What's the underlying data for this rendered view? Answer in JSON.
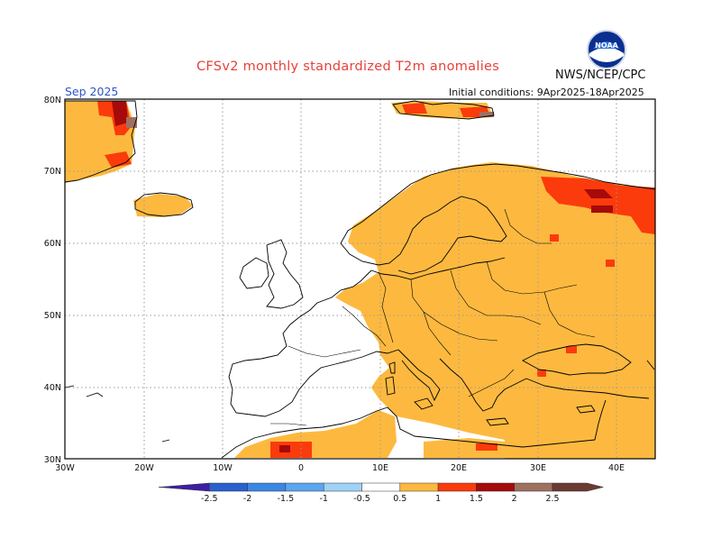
{
  "header": {
    "title": "CFSv2 monthly standardized T2m anomalies",
    "agency": "NWS/NCEP/CPC",
    "valid_month": "Sep 2025",
    "initial_conditions": "Initial conditions: 9Apr2025-18Apr2025",
    "logo_text": "NOAA"
  },
  "axes": {
    "lat_labels": [
      "80N",
      "70N",
      "60N",
      "50N",
      "40N",
      "30N"
    ],
    "lon_labels": [
      "30W",
      "20W",
      "10W",
      "0",
      "10E",
      "20E",
      "30E",
      "40E"
    ]
  },
  "colorbar": {
    "labels": [
      "-2.5",
      "-2",
      "-1.5",
      "-1",
      "-0.5",
      "0.5",
      "1",
      "1.5",
      "2",
      "2.5"
    ],
    "colors": [
      "#3d1fa3",
      "#2a5fd0",
      "#3a86e6",
      "#5aa7f0",
      "#9fd2f7",
      "#ffffff",
      "#fdb93f",
      "#fb3b0c",
      "#a60a0a",
      "#a07060",
      "#6b3a32"
    ]
  },
  "colors": {
    "anomaly_0_5_1": "#fdb93f",
    "anomaly_1_1_5": "#fb3b0c",
    "anomaly_1_5_2": "#a60a0a",
    "anomaly_2_2_5": "#a07060",
    "coastline": "#000000",
    "gridline": "#9a9a9a"
  }
}
